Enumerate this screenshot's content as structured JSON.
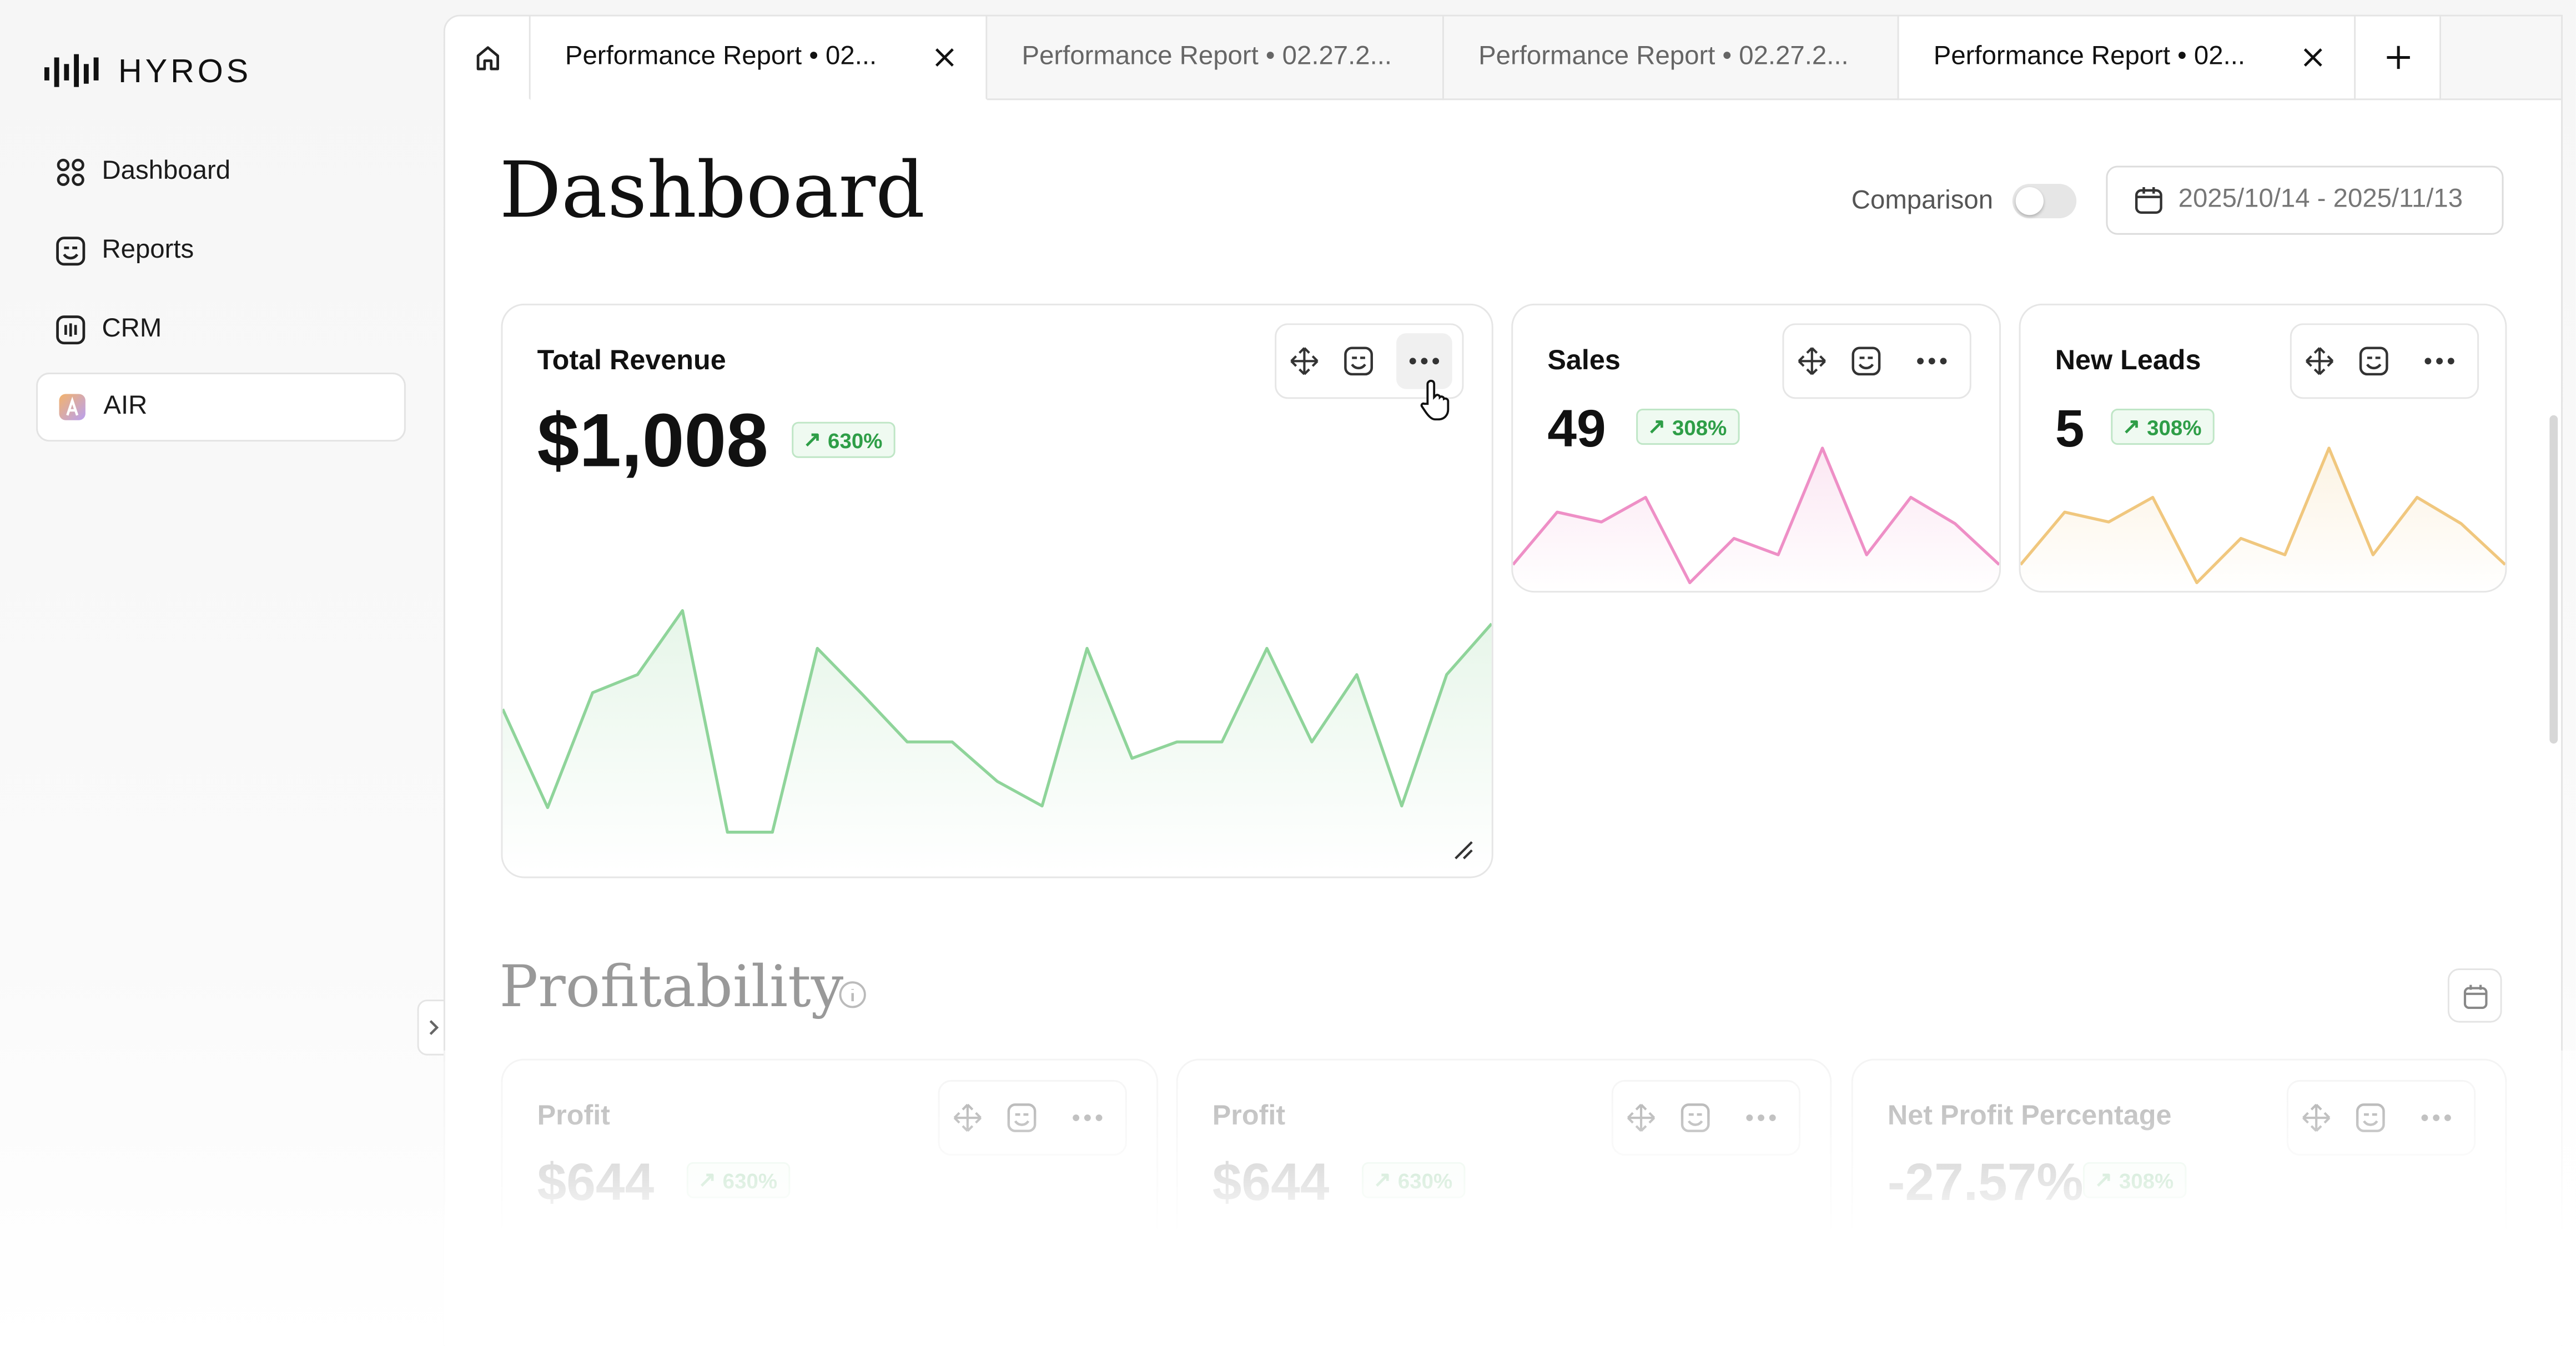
{
  "sidebar": {
    "brand": "HYROS",
    "nav": [
      "Dashboard",
      "Reports",
      "CRM",
      "AIR"
    ]
  },
  "tabs": [
    "Performance Report • 02...",
    "Performance Report • 02.27.2...",
    "Performance Report • 02.27.2...",
    "Performance Report • 02..."
  ],
  "header": {
    "title": "Dashboard",
    "comparison": "Comparison",
    "date_range": "2025/10/14 - 2025/11/13"
  },
  "cards": [
    {
      "title": "Total Revenue",
      "value": "$1,008",
      "badge": "630%",
      "color": "#8fd49a",
      "values": [
        99,
        39,
        109,
        120,
        159,
        24,
        24,
        136,
        108,
        79,
        79,
        55,
        40,
        136,
        69,
        79,
        79,
        136,
        79,
        120,
        40,
        120,
        151
      ]
    },
    {
      "title": "Sales",
      "value": "49",
      "badge": "308%",
      "color": "#ee8fc6",
      "values": [
        17,
        49,
        43,
        58,
        6,
        33,
        23,
        88,
        23,
        58,
        42,
        17
      ]
    },
    {
      "title": "New Leads",
      "value": "5",
      "badge": "308%",
      "color": "#f0c77e",
      "values": [
        17,
        49,
        43,
        58,
        6,
        33,
        23,
        88,
        23,
        58,
        42,
        17
      ]
    }
  ],
  "profitability": {
    "title": "Profitability",
    "cards": [
      {
        "title": "Profit",
        "value": "$644",
        "badge": "630%"
      },
      {
        "title": "Profit",
        "value": "$644",
        "badge": "630%"
      },
      {
        "title": "Net Profit Percentage",
        "value": "-27.57%",
        "badge": "308%"
      }
    ]
  }
}
